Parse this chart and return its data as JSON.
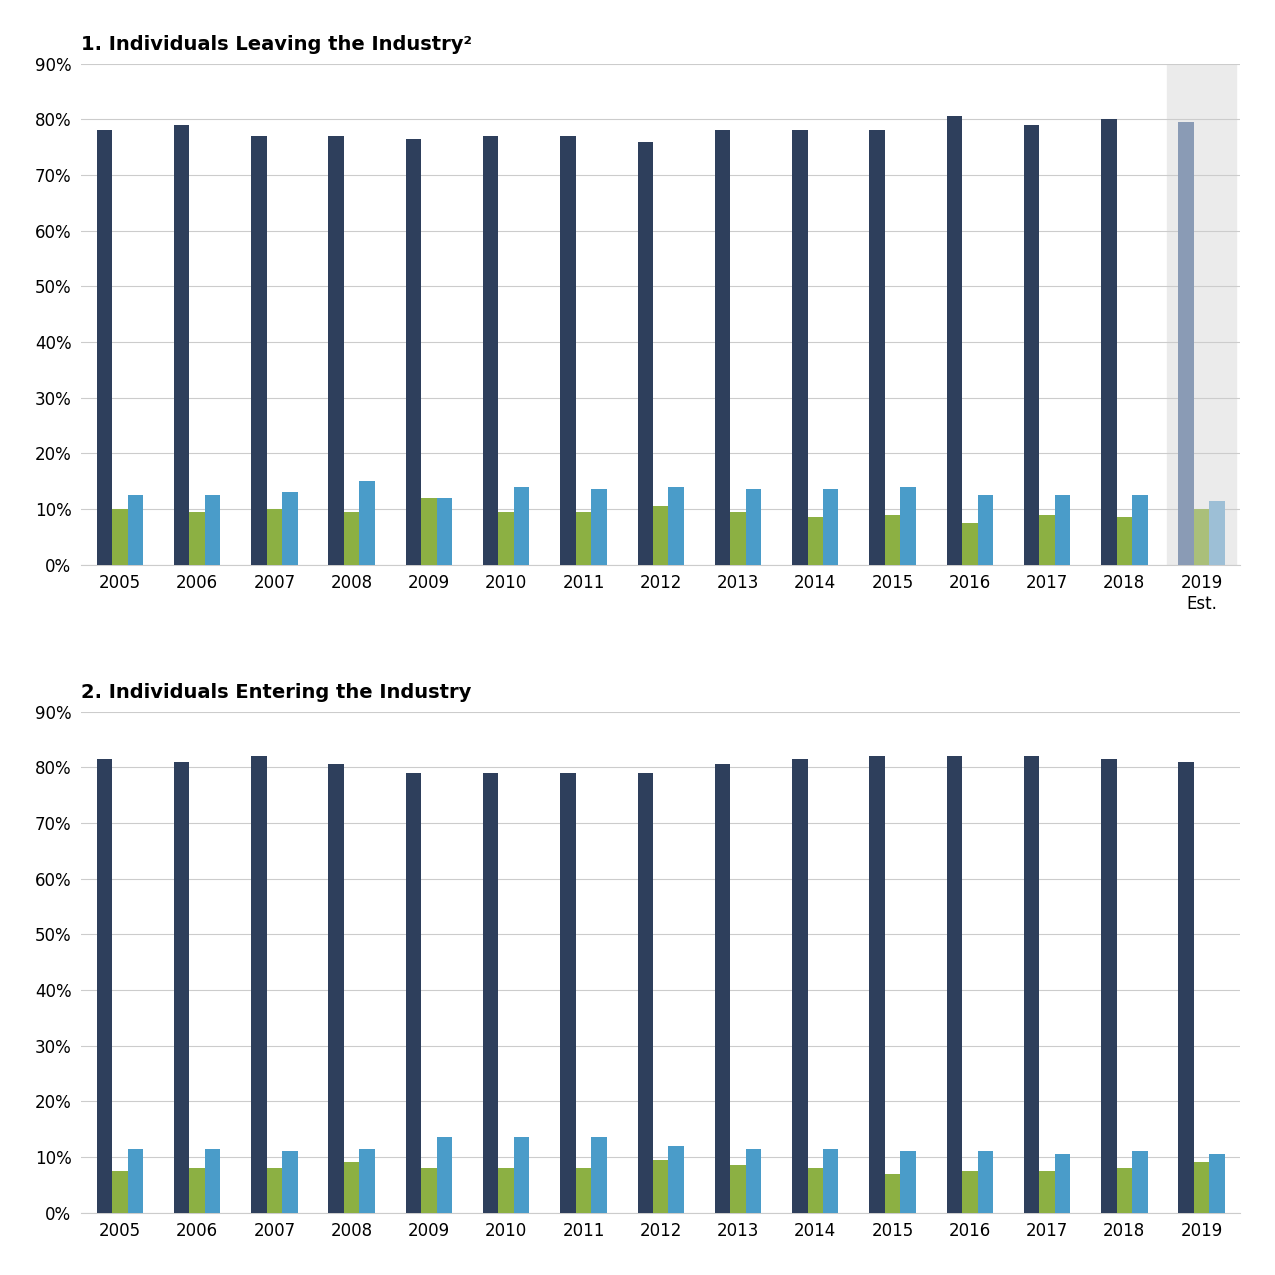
{
  "title1": "1. Individuals Leaving the Industry²",
  "title2": "2. Individuals Entering the Industry",
  "years1": [
    "2005",
    "2006",
    "2007",
    "2008",
    "2009",
    "2010",
    "2011",
    "2012",
    "2013",
    "2014",
    "2015",
    "2016",
    "2017",
    "2018",
    "2019\nEst."
  ],
  "years2": [
    "2005",
    "2006",
    "2007",
    "2008",
    "2009",
    "2010",
    "2011",
    "2012",
    "2013",
    "2014",
    "2015",
    "2016",
    "2017",
    "2018",
    "2019"
  ],
  "leaving_large": [
    78,
    79,
    77,
    77,
    76.5,
    77,
    77,
    76,
    78,
    78,
    78,
    80.5,
    79,
    80,
    79.5
  ],
  "leaving_medium": [
    12.5,
    12.5,
    13,
    15,
    12,
    14,
    13.5,
    14,
    13.5,
    13.5,
    14,
    12.5,
    12.5,
    12.5,
    11.5
  ],
  "leaving_small": [
    10,
    9.5,
    10,
    9.5,
    12,
    9.5,
    9.5,
    10.5,
    9.5,
    8.5,
    9,
    7.5,
    9,
    8.5,
    10
  ],
  "entering_large": [
    81.5,
    81,
    82,
    80.5,
    79,
    79,
    79,
    79,
    80.5,
    81.5,
    82,
    82,
    82,
    81.5,
    81
  ],
  "entering_medium": [
    11.5,
    11.5,
    11,
    11.5,
    13.5,
    13.5,
    13.5,
    12,
    11.5,
    11.5,
    11,
    11,
    10.5,
    11,
    10.5
  ],
  "entering_small": [
    7.5,
    8,
    8,
    9,
    8,
    8,
    8,
    9.5,
    8.5,
    8,
    7,
    7.5,
    7.5,
    8,
    9
  ],
  "color_large": "#2E3F5C",
  "color_medium": "#4A9CC9",
  "color_small": "#8CB043",
  "color_large_2019": "#8A9BB5",
  "color_medium_2019": "#9DBFD6",
  "color_small_2019": "#AABF7A",
  "est_bg_color": "#EBEBEB",
  "bar_width": 0.2,
  "group_width": 1.0
}
